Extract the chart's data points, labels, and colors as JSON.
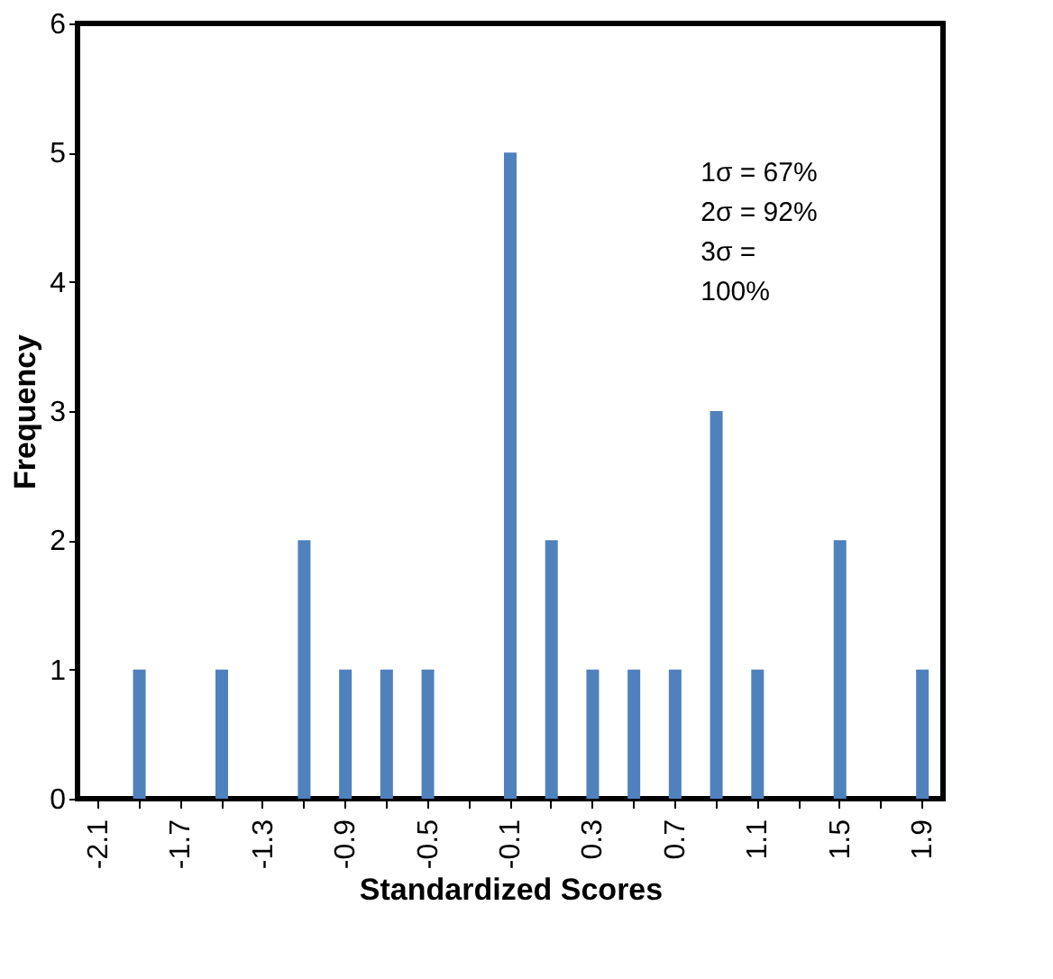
{
  "chart_data": {
    "type": "bar",
    "xlabel": "Standardized Scores",
    "ylabel": "Frequency",
    "categories": [
      "-2.1",
      null,
      "-1.7",
      null,
      "-1.3",
      null,
      "-0.9",
      null,
      "-0.5",
      null,
      "-0.1",
      null,
      "0.3",
      null,
      "0.7",
      null,
      "1.1",
      null,
      "1.5",
      null,
      "1.9"
    ],
    "values": [
      0,
      1,
      0,
      1,
      0,
      2,
      1,
      1,
      1,
      0,
      5,
      2,
      1,
      1,
      1,
      3,
      1,
      0,
      2,
      0,
      1
    ],
    "color": "#4f81bd",
    "ylim": [
      0,
      6
    ],
    "yticks": [
      0,
      1,
      2,
      3,
      4,
      5,
      6
    ],
    "grid": false,
    "annotations": [
      "1σ = 67%",
      "2σ = 92%",
      "3σ =",
      "100%"
    ]
  }
}
